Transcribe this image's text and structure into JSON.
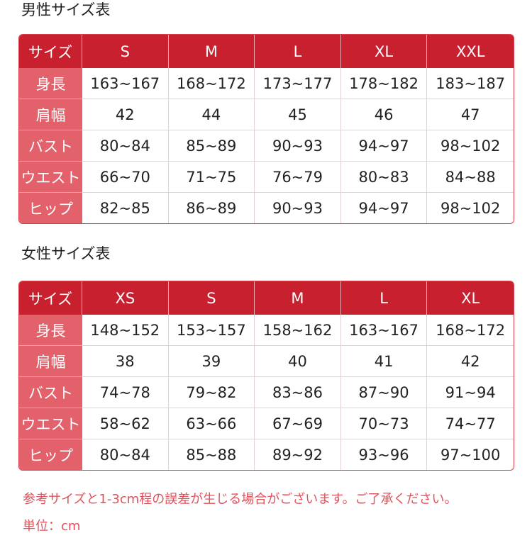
{
  "mens": {
    "title": "男性サイズ表",
    "header": [
      "サイズ",
      "S",
      "M",
      "L",
      "XL",
      "XXL"
    ],
    "rows": [
      [
        "身長",
        "163~167",
        "168~172",
        "173~177",
        "178~182",
        "183~187"
      ],
      [
        "肩幅",
        "42",
        "44",
        "45",
        "46",
        "47"
      ],
      [
        "バスト",
        "80~84",
        "85~89",
        "90~93",
        "94~97",
        "98~102"
      ],
      [
        "ウエスト",
        "66~70",
        "71~75",
        "76~79",
        "80~83",
        "84~88"
      ],
      [
        "ヒップ",
        "82~85",
        "86~89",
        "90~93",
        "94~97",
        "98~102"
      ]
    ]
  },
  "womens": {
    "title": "女性サイズ表",
    "header": [
      "サイズ",
      "XS",
      "S",
      "M",
      "L",
      "XL"
    ],
    "rows": [
      [
        "身長",
        "148~152",
        "153~157",
        "158~162",
        "163~167",
        "168~172"
      ],
      [
        "肩幅",
        "38",
        "39",
        "40",
        "41",
        "42"
      ],
      [
        "バスト",
        "74~78",
        "79~82",
        "83~86",
        "87~90",
        "91~94"
      ],
      [
        "ウエスト",
        "58~62",
        "63~66",
        "67~69",
        "70~73",
        "74~77"
      ],
      [
        "ヒップ",
        "80~84",
        "85~88",
        "89~92",
        "93~96",
        "97~100"
      ]
    ]
  },
  "notes": {
    "disclaimer": "参考サイズと1-3cm程の誤差が生じる場合がございます。ご了承ください。",
    "unit": "単位：cm"
  },
  "colors": {
    "header": "#c8202f",
    "label": "#e2616b",
    "note": "#e0525c"
  }
}
